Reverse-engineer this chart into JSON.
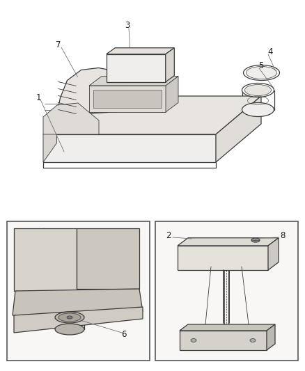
{
  "background_color": "#ffffff",
  "line_color": "#3a3a3a",
  "label_color": "#1a1a1a",
  "fig_width": 4.38,
  "fig_height": 5.33,
  "dpi": 100,
  "border_color": "#555555",
  "gray_line": "#666666",
  "light_gray": "#aaaaaa",
  "fill_light": "#f0eeec",
  "fill_white": "#ffffff",
  "fill_console": "#e8e5e0",
  "fill_seat": "#ddd8d0"
}
